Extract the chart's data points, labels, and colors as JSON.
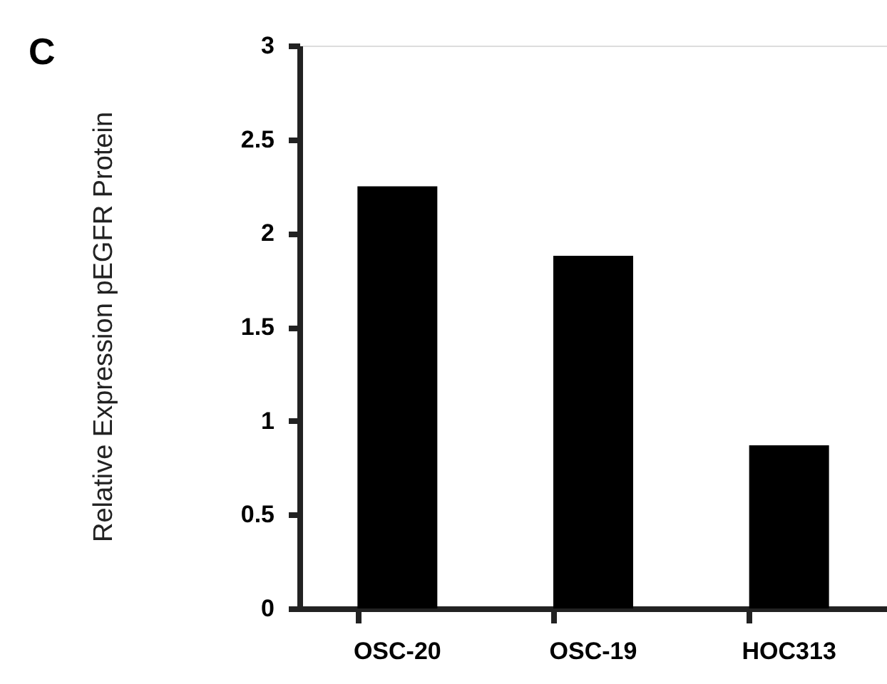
{
  "chart_data": {
    "type": "bar",
    "ylabel": "Relative Expression pEGFR Protein",
    "categories": [
      "OSC-20",
      "OSC-19",
      "HOC313"
    ],
    "values": [
      2.25,
      1.88,
      0.87
    ],
    "color": "#000000",
    "ylim": [
      0,
      3
    ],
    "yticks": [
      {
        "value": 0,
        "label": "0"
      },
      0.5,
      {
        "value": 1,
        "label": "1"
      },
      1.5,
      {
        "value": 2,
        "label": "2"
      },
      2.5,
      {
        "value": 3,
        "label": "3"
      }
    ],
    "grid": false,
    "annotations": [
      "C"
    ]
  }
}
